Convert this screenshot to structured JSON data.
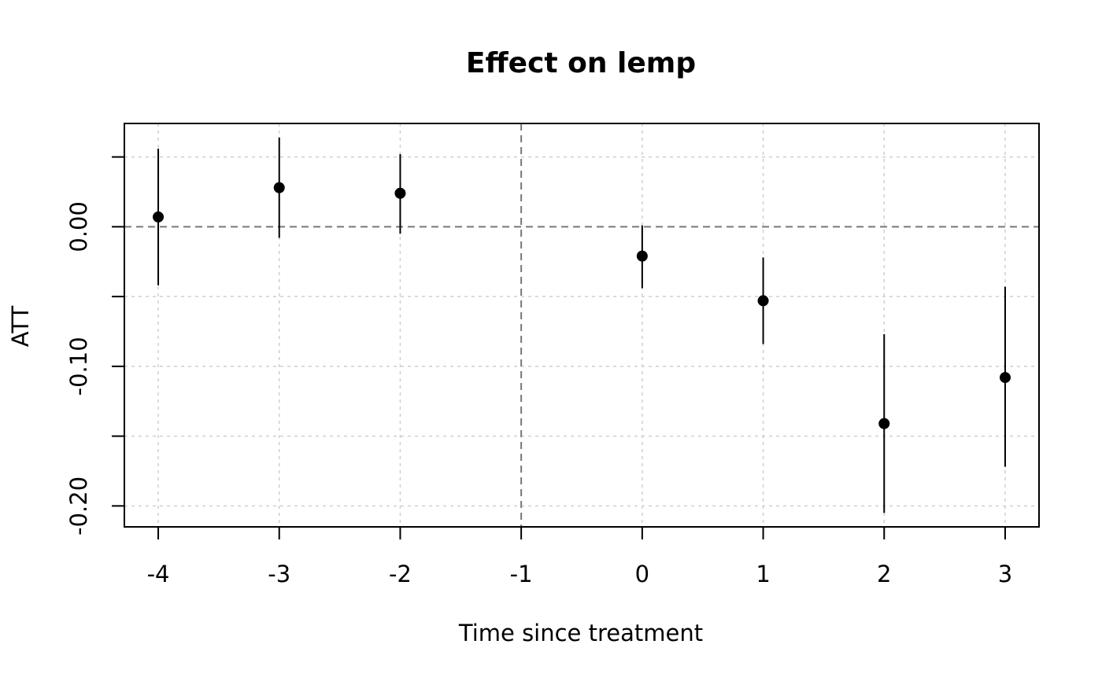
{
  "chart_data": {
    "type": "scatter",
    "title": "Effect on lemp",
    "xlabel": "Time since treatment",
    "ylabel": "ATT",
    "x": [
      -4,
      -3,
      -2,
      0,
      1,
      2,
      3
    ],
    "y": [
      0.007,
      0.028,
      0.024,
      -0.021,
      -0.053,
      -0.141,
      -0.108
    ],
    "ci_low": [
      -0.042,
      -0.008,
      -0.005,
      -0.044,
      -0.084,
      -0.205,
      -0.172
    ],
    "ci_high": [
      0.056,
      0.064,
      0.052,
      0.001,
      -0.022,
      -0.077,
      -0.043
    ],
    "xlim": [
      -4.28,
      3.28
    ],
    "ylim": [
      -0.215,
      0.074
    ],
    "xticks": [
      -4,
      -3,
      -2,
      -1,
      0,
      1,
      2,
      3
    ],
    "xtick_labels": [
      "-4",
      "-3",
      "-2",
      "-1",
      "0",
      "1",
      "2",
      "3"
    ],
    "yticks": [
      -0.2,
      -0.15,
      -0.1,
      -0.05,
      0.0,
      0.05
    ],
    "ytick_labels": [
      "-0.20",
      "",
      "-0.10",
      "",
      "0.00",
      ""
    ],
    "hline": 0,
    "vline": -1,
    "grid": true
  }
}
